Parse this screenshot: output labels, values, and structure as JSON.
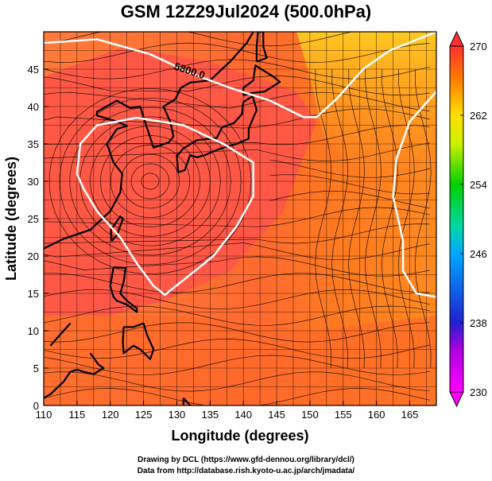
{
  "title": "GSM 12Z29Jul2024 (500.0hPa)",
  "credits": {
    "line1": "Drawing by DCL (https://www.gfd-dennou.org/library/dcl/)",
    "line2": "Data from http://database.rish.kyoto-u.ac.jp/arch/jmadata/"
  },
  "chart_data": {
    "type": "heatmap",
    "xlabel": "Longitude (degrees)",
    "ylabel": "Latitude  (degrees)",
    "xlim": [
      110,
      169
    ],
    "ylim": [
      0,
      50
    ],
    "xticks": [
      110,
      115,
      120,
      125,
      130,
      135,
      140,
      145,
      150,
      155,
      160,
      165
    ],
    "yticks": [
      0,
      5,
      10,
      15,
      20,
      25,
      30,
      35,
      40,
      45
    ],
    "colorbar": {
      "min": 230,
      "max": 270,
      "ticks": [
        230,
        238,
        246,
        254,
        262,
        270
      ],
      "colors": [
        "#ff00ff",
        "#2020d0",
        "#00a8ff",
        "#00d000",
        "#ffe000",
        "#ff8000",
        "#ff3030"
      ]
    },
    "contour_label": "5800.0",
    "high_center": [
      126,
      30
    ]
  }
}
